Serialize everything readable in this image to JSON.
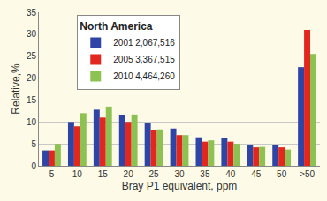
{
  "chart_data": {
    "type": "bar",
    "title": "North America",
    "x_label": "Bray P1 equivalent, ppm",
    "y_label": "Relative,%",
    "categories": [
      "5",
      "10",
      "15",
      "20",
      "25",
      "30",
      "35",
      "40",
      "45",
      "50",
      ">50"
    ],
    "series": [
      {
        "name": "2001 2,067,516",
        "color": "#2f45a6",
        "values": [
          3.5,
          10,
          12.8,
          11.5,
          9.8,
          8.5,
          6.5,
          6.3,
          4.7,
          4.7,
          22.5
        ]
      },
      {
        "name": "2005 3,367,515",
        "color": "#e3261e",
        "values": [
          3.5,
          9,
          11,
          10,
          8.2,
          7,
          5.5,
          5.5,
          4.2,
          4.2,
          31
        ]
      },
      {
        "name": "2010 4,464,260",
        "color": "#8dc152",
        "values": [
          5,
          12,
          13.5,
          11.7,
          8.3,
          7,
          5.8,
          5,
          4.3,
          3.7,
          25.5
        ]
      }
    ],
    "ylim": [
      0,
      35
    ],
    "yticks": [
      0,
      5,
      10,
      15,
      20,
      25,
      30,
      35
    ],
    "grid": true,
    "legend": "upper center"
  }
}
